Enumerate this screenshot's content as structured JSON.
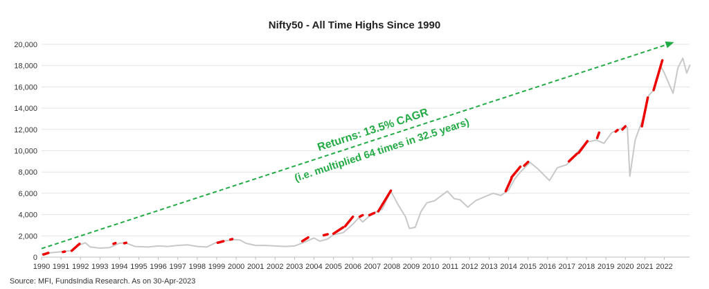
{
  "chart_data": {
    "type": "line",
    "title": "Nifty50 - All Time Highs Since 1990",
    "xlabel": "",
    "ylabel": "",
    "ylim": [
      0,
      20000
    ],
    "xlim": [
      1990,
      2023.3
    ],
    "yticks": [
      0,
      2000,
      4000,
      6000,
      8000,
      10000,
      12000,
      14000,
      16000,
      18000,
      20000
    ],
    "ytick_labels": [
      "0",
      "2,000",
      "4,000",
      "6,000",
      "8,000",
      "10,000",
      "12,000",
      "14,000",
      "16,000",
      "18,000",
      "20,000"
    ],
    "xtick_labels": [
      "1990",
      "1991",
      "1992",
      "1993",
      "1994",
      "1995",
      "1996",
      "1997",
      "1998",
      "1999",
      "2000",
      "2001",
      "2002",
      "2003",
      "2004",
      "2005",
      "2006",
      "2007",
      "2008",
      "2009",
      "2010",
      "2011",
      "2012",
      "2013",
      "2014",
      "2015",
      "2016",
      "2017",
      "2018",
      "2019",
      "2020",
      "2021",
      "2022"
    ],
    "grid": "horizontal",
    "series": [
      {
        "name": "Nifty50",
        "color": "#c8c8c8",
        "x": [
          1990.0,
          1990.5,
          1991.0,
          1991.5,
          1991.9,
          1992.25,
          1992.5,
          1993.0,
          1993.5,
          1994.0,
          1994.3,
          1994.8,
          1995.5,
          1996.0,
          1996.5,
          1997.0,
          1997.5,
          1998.0,
          1998.5,
          1999.0,
          1999.5,
          1999.9,
          2000.2,
          2000.5,
          2001.0,
          2001.5,
          2002.0,
          2002.5,
          2003.0,
          2003.5,
          2004.0,
          2004.3,
          2004.7,
          2005.0,
          2005.5,
          2006.0,
          2006.3,
          2006.5,
          2007.0,
          2007.5,
          2007.95,
          2008.3,
          2008.7,
          2008.9,
          2009.2,
          2009.5,
          2009.8,
          2010.2,
          2010.85,
          2011.2,
          2011.5,
          2011.9,
          2012.3,
          2012.8,
          2013.2,
          2013.6,
          2014.0,
          2014.3,
          2014.6,
          2015.1,
          2015.5,
          2016.1,
          2016.5,
          2017.0,
          2017.5,
          2018.0,
          2018.5,
          2018.9,
          2019.3,
          2019.9,
          2020.1,
          2020.23,
          2020.5,
          2020.9,
          2021.2,
          2021.5,
          2021.8,
          2022.0,
          2022.45,
          2022.7,
          2022.95,
          2023.15,
          2023.33
        ],
        "values": [
          300,
          420,
          500,
          600,
          1100,
          1350,
          950,
          850,
          900,
          1300,
          1350,
          1000,
          950,
          1050,
          1000,
          1100,
          1150,
          1000,
          950,
          1400,
          1550,
          1650,
          1600,
          1300,
          1100,
          1100,
          1050,
          1000,
          1050,
          1400,
          1800,
          1500,
          1700,
          2100,
          2300,
          3100,
          3700,
          3300,
          4100,
          4500,
          6200,
          5000,
          3800,
          2700,
          2800,
          4300,
          5100,
          5300,
          6200,
          5500,
          5400,
          4700,
          5300,
          5700,
          6000,
          5800,
          6300,
          7300,
          8000,
          8900,
          8300,
          7200,
          8400,
          8700,
          9800,
          10800,
          11000,
          10700,
          11700,
          12200,
          12200,
          7600,
          11000,
          13000,
          15200,
          15800,
          18000,
          17300,
          15400,
          17800,
          18700,
          17300,
          18100
        ]
      },
      {
        "name": "All Time Highs",
        "color": "#ee0000",
        "segments": [
          {
            "x": [
              1990.1,
              1990.35
            ],
            "values": [
              250,
              400
            ]
          },
          {
            "x": [
              1991.1,
              1991.2
            ],
            "values": [
              480,
              520
            ]
          },
          {
            "x": [
              1991.55,
              1991.95
            ],
            "values": [
              600,
              1250
            ]
          },
          {
            "x": [
              1993.7,
              1993.8
            ],
            "values": [
              1250,
              1320
            ]
          },
          {
            "x": [
              1994.25,
              1994.35
            ],
            "values": [
              1300,
              1350
            ]
          },
          {
            "x": [
              1999.05,
              1999.35
            ],
            "values": [
              1350,
              1500
            ]
          },
          {
            "x": [
              1999.7,
              1999.8
            ],
            "values": [
              1650,
              1700
            ]
          },
          {
            "x": [
              2003.4,
              2003.7
            ],
            "values": [
              1500,
              1850
            ]
          },
          {
            "x": [
              2004.5,
              2004.7
            ],
            "values": [
              2050,
              2150
            ]
          },
          {
            "x": [
              2005.0,
              2005.5
            ],
            "values": [
              2200,
              2800
            ]
          },
          {
            "x": [
              2005.6,
              2006.0
            ],
            "values": [
              2900,
              3800
            ]
          },
          {
            "x": [
              2006.35,
              2006.5
            ],
            "values": [
              3800,
              3950
            ]
          },
          {
            "x": [
              2006.85,
              2007.1
            ],
            "values": [
              3950,
              4150
            ]
          },
          {
            "x": [
              2007.3,
              2007.95
            ],
            "values": [
              4300,
              6250
            ]
          },
          {
            "x": [
              2013.85,
              2014.15
            ],
            "values": [
              6200,
              7400
            ]
          },
          {
            "x": [
              2014.15,
              2014.6
            ],
            "values": [
              7500,
              8500
            ]
          },
          {
            "x": [
              2014.8,
              2015.0
            ],
            "values": [
              8600,
              8950
            ]
          },
          {
            "x": [
              2017.1,
              2017.5
            ],
            "values": [
              9000,
              9700
            ]
          },
          {
            "x": [
              2017.6,
              2018.05
            ],
            "values": [
              9800,
              10900
            ]
          },
          {
            "x": [
              2018.55,
              2018.65
            ],
            "values": [
              11200,
              11700
            ]
          },
          {
            "x": [
              2019.5,
              2019.6
            ],
            "values": [
              11800,
              11950
            ]
          },
          {
            "x": [
              2019.85,
              2020.0
            ],
            "values": [
              12000,
              12300
            ]
          },
          {
            "x": [
              2020.85,
              2021.15
            ],
            "values": [
              12300,
              15000
            ]
          },
          {
            "x": [
              2021.45,
              2021.9
            ],
            "values": [
              15700,
              18500
            ]
          }
        ]
      }
    ],
    "annotations": [
      {
        "text": "Returns: 13.5% CAGR",
        "color": "#22aa44"
      },
      {
        "text": "(i.e. multiplied 64 times in 32.5 years)",
        "color": "#22aa44"
      }
    ],
    "trend_arrow": {
      "from": [
        1990,
        800
      ],
      "to": [
        2022.5,
        20200
      ],
      "color": "#22aa44",
      "style": "dashed"
    }
  },
  "source": "Source: MFI, FundsIndia Research. As on 30-Apr-2023"
}
